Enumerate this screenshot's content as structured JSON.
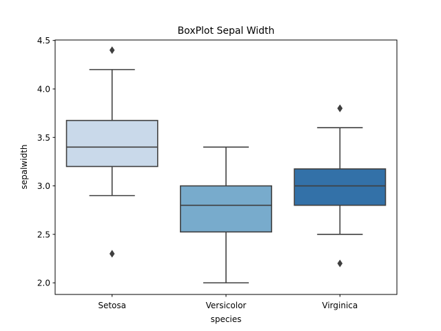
{
  "chart_data": {
    "type": "box",
    "title": "BoxPlot Sepal Width",
    "xlabel": "species",
    "ylabel": "sepalwidth",
    "ylim": [
      1.88,
      4.505
    ],
    "yticks": [
      "2.0",
      "2.5",
      "3.0",
      "3.5",
      "4.0",
      "4.5"
    ],
    "grid": false,
    "categories": [
      "Setosa",
      "Versicolor",
      "Virginica"
    ],
    "boxes": [
      {
        "category": "Setosa",
        "whisker_low": 2.9,
        "q1": 3.2,
        "median": 3.4,
        "q3": 3.675,
        "whisker_high": 4.2,
        "outliers": [
          4.4,
          2.3
        ],
        "color": "#c9d9ea"
      },
      {
        "category": "Versicolor",
        "whisker_low": 2.0,
        "q1": 2.525,
        "median": 2.8,
        "q3": 3.0,
        "whisker_high": 3.4,
        "outliers": [],
        "color": "#78abcc"
      },
      {
        "category": "Virginica",
        "whisker_low": 2.5,
        "q1": 2.8,
        "median": 3.0,
        "q3": 3.175,
        "whisker_high": 3.6,
        "outliers": [
          3.8,
          3.8,
          2.2
        ],
        "color": "#3371a8"
      }
    ],
    "line_color": "#3f3f3f"
  }
}
